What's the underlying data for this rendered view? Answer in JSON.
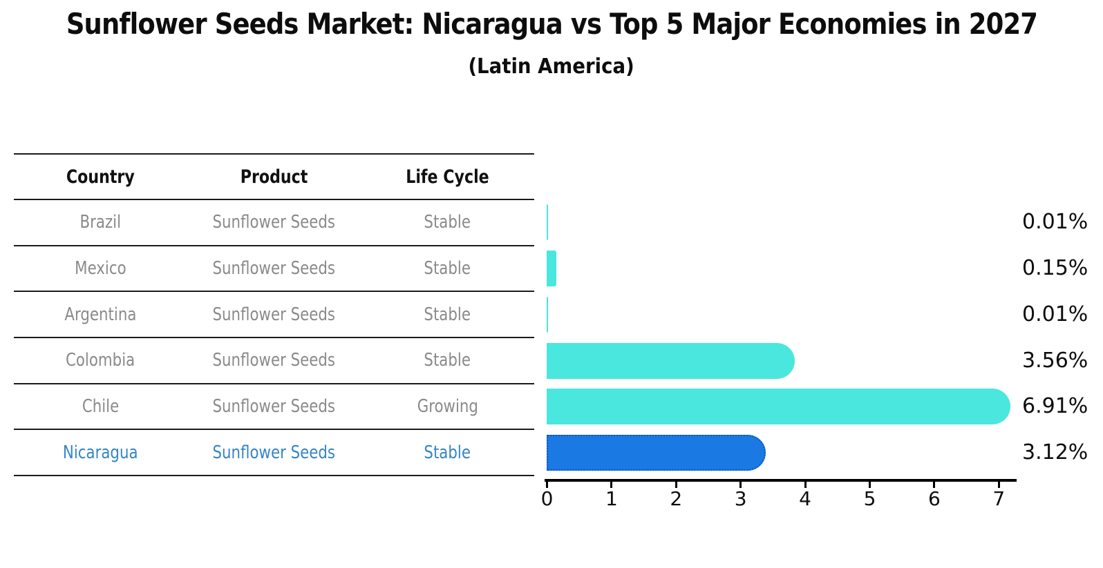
{
  "title": "Sunflower Seeds Market: Nicaragua vs Top 5 Major Economies in 2027",
  "subtitle": "(Latin America)",
  "table": {
    "headers": [
      "Country",
      "Product",
      "Life Cycle"
    ],
    "rows": [
      {
        "country": "Brazil",
        "product": "Sunflower Seeds",
        "life_cycle": "Stable",
        "highlight": false
      },
      {
        "country": "Mexico",
        "product": "Sunflower Seeds",
        "life_cycle": "Stable",
        "highlight": false
      },
      {
        "country": "Argentina",
        "product": "Sunflower Seeds",
        "life_cycle": "Stable",
        "highlight": false
      },
      {
        "country": "Colombia",
        "product": "Sunflower Seeds",
        "life_cycle": "Stable",
        "highlight": false
      },
      {
        "country": "Chile",
        "product": "Sunflower Seeds",
        "life_cycle": "Growing",
        "highlight": false
      },
      {
        "country": "Nicaragua",
        "product": "Sunflower Seeds",
        "life_cycle": "Stable",
        "highlight": true
      }
    ]
  },
  "chart_data": {
    "type": "bar",
    "orientation": "horizontal",
    "categories": [
      "Brazil",
      "Mexico",
      "Argentina",
      "Colombia",
      "Chile",
      "Nicaragua"
    ],
    "values": [
      0.01,
      0.15,
      0.01,
      3.56,
      6.91,
      3.12
    ],
    "value_labels": [
      "0.01%",
      "0.15%",
      "0.01%",
      "3.56%",
      "6.91%",
      "3.12%"
    ],
    "x_ticks": [
      "0",
      "1",
      "2",
      "3",
      "4",
      "5",
      "6",
      "7"
    ],
    "xlim": [
      0,
      7.3
    ],
    "grid": false,
    "legend": "none",
    "highlight_index": 5
  },
  "colors": {
    "bar_fill": "#49e7dd",
    "highlight_fill": "#1b79e3",
    "highlight_border": "#0e57b8",
    "highlight_text": "#3585c8",
    "row_text": "#8a8a8a",
    "header_text": "#111111",
    "axis": "#000000"
  }
}
